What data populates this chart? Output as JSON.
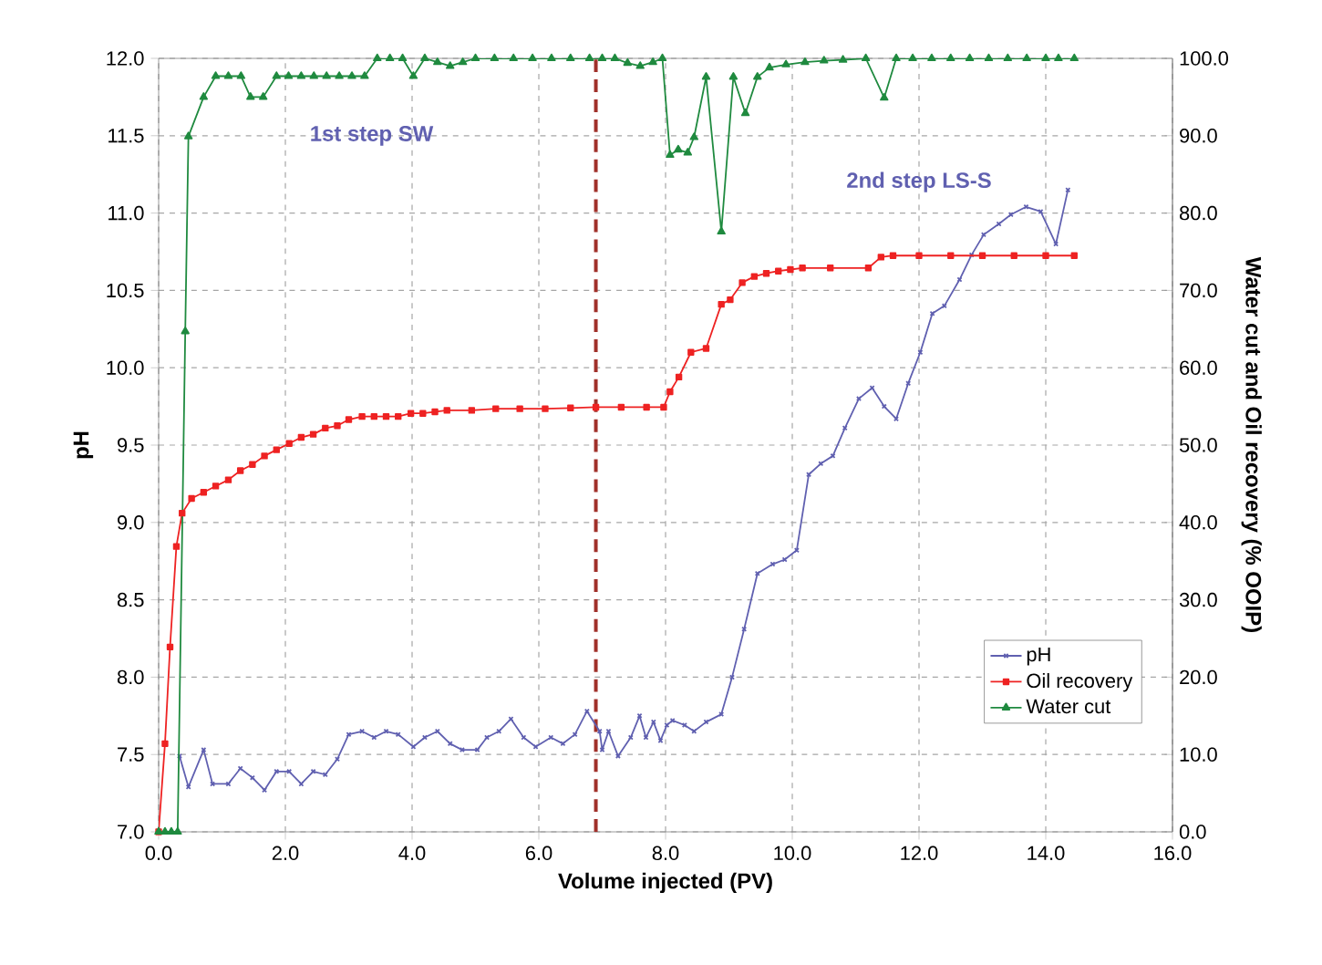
{
  "chart_data": {
    "type": "line",
    "xlabel": "Volume injected (PV)",
    "ylabel": "pH",
    "y2label": "Water cut and Oil recovery (% OOIP)",
    "annotations": [
      "1st step SW",
      "2nd step LS-S"
    ],
    "xlim": [
      0,
      16
    ],
    "ylim": [
      7,
      12
    ],
    "y2lim": [
      0,
      100
    ],
    "xticks": [
      {
        "value": 0,
        "label": "0.0"
      },
      {
        "value": 2,
        "label": "2.0"
      },
      {
        "value": 4,
        "label": "4.0"
      },
      {
        "value": 6,
        "label": "6.0"
      },
      {
        "value": 8,
        "label": "8.0"
      },
      {
        "value": 10,
        "label": "10.0"
      },
      {
        "value": 12,
        "label": "12.0"
      },
      {
        "value": 14,
        "label": "14.0"
      },
      {
        "value": 16,
        "label": "16.0"
      }
    ],
    "yticks": [
      {
        "value": 7,
        "label": "7.0"
      },
      {
        "value": 7.5,
        "label": "7.5"
      },
      {
        "value": 8,
        "label": "8.0"
      },
      {
        "value": 8.5,
        "label": "8.5"
      },
      {
        "value": 9,
        "label": "9.0"
      },
      {
        "value": 9.5,
        "label": "9.5"
      },
      {
        "value": 10,
        "label": "10.0"
      },
      {
        "value": 10.5,
        "label": "10.5"
      },
      {
        "value": 11,
        "label": "11.0"
      },
      {
        "value": 11.5,
        "label": "11.5"
      },
      {
        "value": 12,
        "label": "12.0"
      }
    ],
    "y2ticks": [
      {
        "value": 0,
        "label": "0.0"
      },
      {
        "value": 10,
        "label": "10.0"
      },
      {
        "value": 20,
        "label": "20.0"
      },
      {
        "value": 30,
        "label": "30.0"
      },
      {
        "value": 40,
        "label": "40.0"
      },
      {
        "value": 50,
        "label": "50.0"
      },
      {
        "value": 60,
        "label": "60.0"
      },
      {
        "value": 70,
        "label": "70.0"
      },
      {
        "value": 80,
        "label": "80.0"
      },
      {
        "value": 90,
        "label": "90.0"
      },
      {
        "value": 100,
        "label": "100.0"
      }
    ],
    "grid": true,
    "legend": "bottom right",
    "ref_lines": [
      {
        "axis": "x",
        "value": 6.9,
        "color": "#a0302a",
        "line_style": "dashed"
      }
    ],
    "series": [
      {
        "name": "pH",
        "color": "#6060b0",
        "marker": "cross",
        "x": [
          0.33,
          0.47,
          0.71,
          0.85,
          1.1,
          1.29,
          1.48,
          1.67,
          1.86,
          2.06,
          2.25,
          2.44,
          2.63,
          2.82,
          3.0,
          3.21,
          3.4,
          3.59,
          3.78,
          4.02,
          4.2,
          4.4,
          4.6,
          4.79,
          5.03,
          5.18,
          5.37,
          5.56,
          5.76,
          5.95,
          6.19,
          6.38,
          6.57,
          6.76,
          6.96,
          7.0,
          7.1,
          7.25,
          7.45,
          7.59,
          7.69,
          7.81,
          7.92,
          8.02,
          8.11,
          8.3,
          8.45,
          8.64,
          8.88,
          9.05,
          9.24,
          9.45,
          9.69,
          9.88,
          10.07,
          10.26,
          10.45,
          10.64,
          10.83,
          11.05,
          11.26,
          11.45,
          11.64,
          11.83,
          12.02,
          12.21,
          12.4,
          12.64,
          12.83,
          13.02,
          13.26,
          13.45,
          13.69,
          13.92,
          14.16,
          14.35
        ],
        "values": [
          7.49,
          7.29,
          7.53,
          7.31,
          7.31,
          7.41,
          7.35,
          7.27,
          7.39,
          7.39,
          7.31,
          7.39,
          7.37,
          7.47,
          7.63,
          7.65,
          7.61,
          7.65,
          7.63,
          7.55,
          7.61,
          7.65,
          7.57,
          7.53,
          7.53,
          7.61,
          7.65,
          7.73,
          7.61,
          7.55,
          7.61,
          7.57,
          7.63,
          7.78,
          7.65,
          7.53,
          7.65,
          7.49,
          7.61,
          7.75,
          7.61,
          7.71,
          7.59,
          7.69,
          7.72,
          7.69,
          7.65,
          7.71,
          7.76,
          8.0,
          8.31,
          8.67,
          8.73,
          8.76,
          8.82,
          9.31,
          9.38,
          9.43,
          9.61,
          9.8,
          9.87,
          9.75,
          9.67,
          9.9,
          10.1,
          10.35,
          10.4,
          10.57,
          10.73,
          10.86,
          10.93,
          10.99,
          11.04,
          11.01,
          10.8,
          11.15
        ]
      },
      {
        "name": "Oil recovery",
        "color": "#ee2222",
        "marker": "square",
        "axis": "y2",
        "x": [
          0,
          0.1,
          0.18,
          0.28,
          0.37,
          0.52,
          0.71,
          0.9,
          1.1,
          1.29,
          1.48,
          1.67,
          1.86,
          2.06,
          2.25,
          2.44,
          2.63,
          2.82,
          3.0,
          3.21,
          3.4,
          3.59,
          3.78,
          3.98,
          4.17,
          4.36,
          4.55,
          4.94,
          5.32,
          5.7,
          6.1,
          6.5,
          6.9,
          7.3,
          7.7,
          7.97,
          8.07,
          8.21,
          8.4,
          8.64,
          8.88,
          9.02,
          9.21,
          9.4,
          9.59,
          9.78,
          9.97,
          10.16,
          10.6,
          11.2,
          11.4,
          11.59,
          12.0,
          12.5,
          13.0,
          13.5,
          14.0,
          14.45
        ],
        "values": [
          0,
          11.4,
          23.9,
          36.9,
          41.2,
          43.1,
          43.9,
          44.7,
          45.5,
          46.7,
          47.5,
          48.6,
          49.4,
          50.2,
          51.0,
          51.4,
          52.2,
          52.5,
          53.3,
          53.7,
          53.7,
          53.7,
          53.7,
          54.1,
          54.1,
          54.3,
          54.5,
          54.5,
          54.7,
          54.7,
          54.7,
          54.8,
          54.9,
          54.9,
          54.9,
          54.9,
          56.9,
          58.8,
          62.0,
          62.5,
          68.2,
          68.8,
          71.0,
          71.8,
          72.2,
          72.5,
          72.7,
          72.9,
          72.9,
          72.9,
          74.3,
          74.5,
          74.5,
          74.5,
          74.5,
          74.5,
          74.5,
          74.5
        ]
      },
      {
        "name": "Water cut",
        "color": "#1f8a3f",
        "marker": "triangle",
        "axis": "y2",
        "x": [
          0,
          0.1,
          0.2,
          0.3,
          0.42,
          0.47,
          0.71,
          0.9,
          1.1,
          1.3,
          1.45,
          1.65,
          1.86,
          2.05,
          2.25,
          2.45,
          2.65,
          2.85,
          3.05,
          3.25,
          3.45,
          3.65,
          3.85,
          4.02,
          4.2,
          4.4,
          4.6,
          4.8,
          5.0,
          5.3,
          5.6,
          5.9,
          6.2,
          6.5,
          6.8,
          7.0,
          7.2,
          7.4,
          7.6,
          7.8,
          7.95,
          8.07,
          8.2,
          8.35,
          8.45,
          8.64,
          8.88,
          9.07,
          9.26,
          9.45,
          9.64,
          9.9,
          10.2,
          10.5,
          10.8,
          11.16,
          11.45,
          11.64,
          11.9,
          12.2,
          12.5,
          12.8,
          13.1,
          13.4,
          13.7,
          14.0,
          14.2,
          14.45
        ],
        "values": [
          0,
          0,
          0,
          0,
          64.7,
          89.9,
          95,
          97.7,
          97.7,
          97.7,
          95,
          95,
          97.7,
          97.7,
          97.7,
          97.7,
          97.7,
          97.7,
          97.7,
          97.7,
          100,
          100,
          100,
          97.7,
          100,
          99.5,
          99,
          99.5,
          100,
          100,
          100,
          100,
          100,
          100,
          100,
          100,
          100,
          99.4,
          99,
          99.5,
          100,
          87.5,
          88.2,
          87.8,
          89.8,
          97.6,
          77.6,
          97.6,
          92.9,
          97.6,
          98.8,
          99.2,
          99.5,
          99.7,
          99.8,
          100,
          94.9,
          100,
          100,
          100,
          100,
          100,
          100,
          100,
          100,
          100,
          100,
          100
        ]
      }
    ]
  }
}
